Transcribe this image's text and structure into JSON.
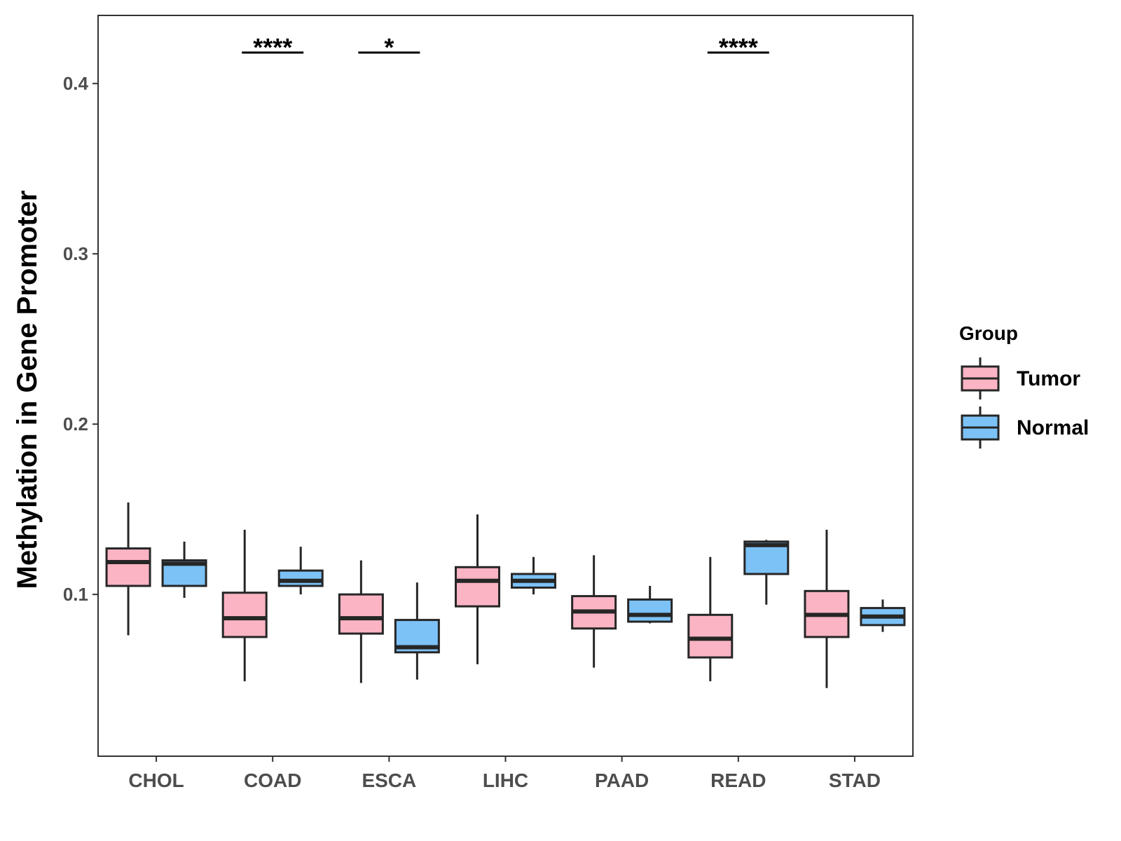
{
  "chart_data": {
    "type": "boxplot",
    "title": "",
    "xlabel": "",
    "ylabel": "Methylation in Gene Promoter",
    "ylim": [
      0.005,
      0.44
    ],
    "yticks": [
      0.1,
      0.2,
      0.3,
      0.4
    ],
    "ytick_labels": [
      "0.1",
      "0.2",
      "0.3",
      "0.4"
    ],
    "grid": false,
    "categories": [
      "CHOL",
      "COAD",
      "ESCA",
      "LIHC",
      "PAAD",
      "READ",
      "STAD"
    ],
    "legend": {
      "title": "Group",
      "position": "right",
      "entries": [
        "Tumor",
        "Normal"
      ]
    },
    "series": [
      {
        "name": "Tumor",
        "color": "#fbb4c4",
        "boxes": [
          {
            "whisker_low": 0.076,
            "q1": 0.105,
            "median": 0.119,
            "q3": 0.127,
            "whisker_high": 0.154
          },
          {
            "whisker_low": 0.049,
            "q1": 0.075,
            "median": 0.086,
            "q3": 0.101,
            "whisker_high": 0.138
          },
          {
            "whisker_low": 0.048,
            "q1": 0.077,
            "median": 0.086,
            "q3": 0.1,
            "whisker_high": 0.12
          },
          {
            "whisker_low": 0.059,
            "q1": 0.093,
            "median": 0.108,
            "q3": 0.116,
            "whisker_high": 0.147
          },
          {
            "whisker_low": 0.057,
            "q1": 0.08,
            "median": 0.09,
            "q3": 0.099,
            "whisker_high": 0.123
          },
          {
            "whisker_low": 0.049,
            "q1": 0.063,
            "median": 0.074,
            "q3": 0.088,
            "whisker_high": 0.122
          },
          {
            "whisker_low": 0.045,
            "q1": 0.075,
            "median": 0.088,
            "q3": 0.102,
            "whisker_high": 0.138
          }
        ]
      },
      {
        "name": "Normal",
        "color": "#7cc2f7",
        "boxes": [
          {
            "whisker_low": 0.098,
            "q1": 0.105,
            "median": 0.118,
            "q3": 0.12,
            "whisker_high": 0.131
          },
          {
            "whisker_low": 0.1,
            "q1": 0.105,
            "median": 0.108,
            "q3": 0.114,
            "whisker_high": 0.128
          },
          {
            "whisker_low": 0.05,
            "q1": 0.066,
            "median": 0.069,
            "q3": 0.085,
            "whisker_high": 0.107
          },
          {
            "whisker_low": 0.1,
            "q1": 0.104,
            "median": 0.108,
            "q3": 0.112,
            "whisker_high": 0.122
          },
          {
            "whisker_low": 0.083,
            "q1": 0.084,
            "median": 0.088,
            "q3": 0.097,
            "whisker_high": 0.105
          },
          {
            "whisker_low": 0.094,
            "q1": 0.112,
            "median": 0.129,
            "q3": 0.131,
            "whisker_high": 0.132
          },
          {
            "whisker_low": 0.078,
            "q1": 0.082,
            "median": 0.087,
            "q3": 0.092,
            "whisker_high": 0.097
          }
        ]
      }
    ],
    "annotations": [
      {
        "category": "COAD",
        "label": "****"
      },
      {
        "category": "ESCA",
        "label": "*"
      },
      {
        "category": "READ",
        "label": "****"
      }
    ]
  }
}
